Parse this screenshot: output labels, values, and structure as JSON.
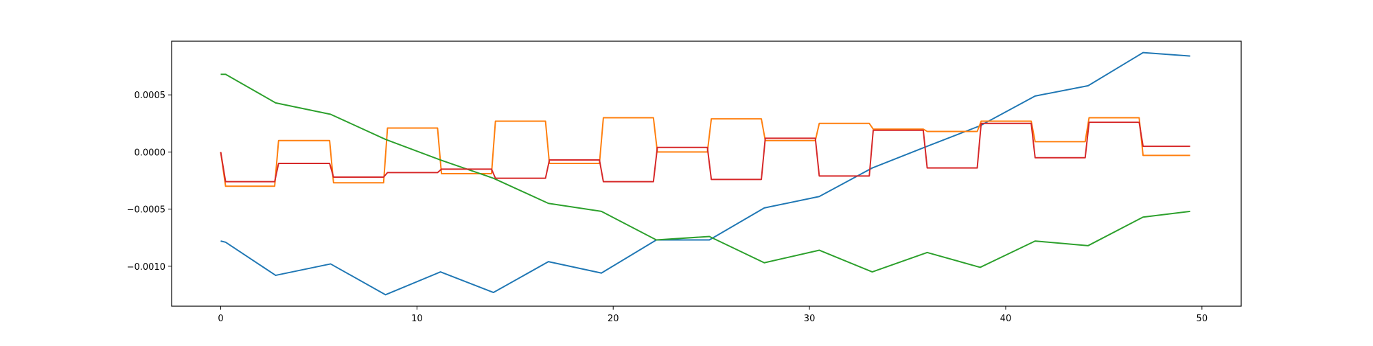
{
  "chart_data": {
    "type": "line",
    "title": "",
    "xlabel": "",
    "ylabel": "",
    "xlim": [
      -2.5,
      52
    ],
    "ylim": [
      -0.00135,
      0.00097
    ],
    "grid": false,
    "legend": "none",
    "x_ticks": [
      0,
      10,
      20,
      30,
      40,
      50
    ],
    "x_tick_labels": [
      "0",
      "10",
      "20",
      "30",
      "40",
      "50"
    ],
    "y_ticks": [
      -0.001,
      -0.0005,
      0,
      0.0005
    ],
    "y_tick_labels": [
      "−0.0010",
      "−0.0005",
      "0.0000",
      "0.0005"
    ],
    "series": [
      {
        "color": "#1f77b4",
        "x": [
          0,
          0.25,
          2.8,
          5.6,
          8.4,
          11.2,
          13.9,
          16.7,
          19.4,
          22.2,
          24.9,
          27.7,
          30.5,
          33.2,
          36.0,
          38.7,
          41.5,
          44.2,
          47.0,
          49.4
        ],
        "y": [
          -0.00078,
          -0.00079,
          -0.00108,
          -0.00098,
          -0.00125,
          -0.00105,
          -0.00123,
          -0.00096,
          -0.00106,
          -0.00077,
          -0.00077,
          -0.00049,
          -0.00039,
          -0.00014,
          5e-05,
          0.00023,
          0.00049,
          0.00058,
          0.00087,
          0.00084
        ]
      },
      {
        "color": "#ff7f0e",
        "x": [
          0,
          0.25,
          2.75,
          2.95,
          5.55,
          5.75,
          8.3,
          8.5,
          11.05,
          11.25,
          13.8,
          14.0,
          16.55,
          16.75,
          19.3,
          19.5,
          22.05,
          22.25,
          24.8,
          25.0,
          27.55,
          27.75,
          30.3,
          30.5,
          33.05,
          33.25,
          35.8,
          36.0,
          38.55,
          38.75,
          41.3,
          41.5,
          44.05,
          44.25,
          46.8,
          47.0,
          49.4
        ],
        "y": [
          0,
          -0.0003,
          -0.0003,
          0.0001,
          0.0001,
          -0.00027,
          -0.00027,
          0.00021,
          0.00021,
          -0.00019,
          -0.00019,
          0.00027,
          0.00027,
          -0.0001,
          -0.0001,
          0.0003,
          0.0003,
          0.0,
          0.0,
          0.00029,
          0.00029,
          0.0001,
          0.0001,
          0.00025,
          0.00025,
          0.0002,
          0.0002,
          0.00018,
          0.00018,
          0.00027,
          0.00027,
          9e-05,
          9e-05,
          0.0003,
          0.0003,
          -3e-05,
          -3e-05
        ]
      },
      {
        "color": "#2ca02c",
        "x": [
          0,
          0.25,
          2.8,
          5.6,
          8.4,
          11.2,
          13.9,
          16.7,
          19.4,
          22.2,
          24.9,
          27.7,
          30.5,
          33.2,
          36.0,
          38.7,
          41.5,
          44.2,
          47.0,
          49.4
        ],
        "y": [
          0.00068,
          0.00068,
          0.00043,
          0.00033,
          0.00011,
          -7e-05,
          -0.00023,
          -0.00045,
          -0.00052,
          -0.00077,
          -0.00074,
          -0.00097,
          -0.00086,
          -0.00105,
          -0.00088,
          -0.00101,
          -0.00078,
          -0.00082,
          -0.00057,
          -0.00052
        ]
      },
      {
        "color": "#d62728",
        "x": [
          0,
          0.25,
          2.75,
          2.95,
          5.55,
          5.75,
          8.3,
          8.5,
          11.05,
          11.25,
          13.8,
          14.0,
          16.55,
          16.75,
          19.3,
          19.5,
          22.05,
          22.25,
          24.8,
          25.0,
          27.55,
          27.75,
          30.3,
          30.5,
          33.05,
          33.25,
          35.8,
          36.0,
          38.55,
          38.75,
          41.3,
          41.5,
          44.05,
          44.25,
          46.8,
          47.0,
          49.4
        ],
        "y": [
          0,
          -0.00026,
          -0.00026,
          -0.0001,
          -0.0001,
          -0.00022,
          -0.00022,
          -0.00018,
          -0.00018,
          -0.00015,
          -0.00015,
          -0.00023,
          -0.00023,
          -7e-05,
          -7e-05,
          -0.00026,
          -0.00026,
          4e-05,
          4e-05,
          -0.00024,
          -0.00024,
          0.00012,
          0.00012,
          -0.00021,
          -0.00021,
          0.00019,
          0.00019,
          -0.00014,
          -0.00014,
          0.00025,
          0.00025,
          -5e-05,
          -5e-05,
          0.00026,
          0.00026,
          5e-05,
          5e-05
        ]
      }
    ]
  }
}
